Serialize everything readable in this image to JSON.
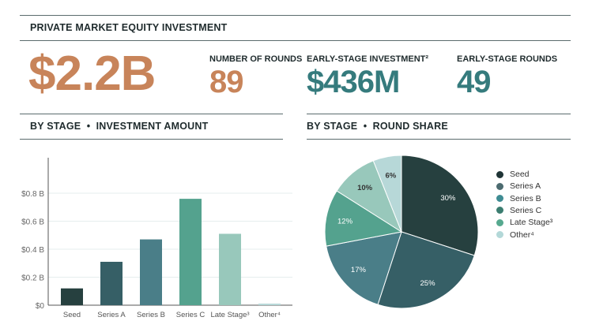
{
  "header": {
    "title": "PRIVATE MARKET EQUITY INVESTMENT"
  },
  "kpis": {
    "total": "$2.2B",
    "rounds_label": "NUMBER OF ROUNDS",
    "rounds_value": "89",
    "early_inv_label": "EARLY-STAGE INVESTMENT²",
    "early_inv_value": "$436M",
    "early_rounds_label": "EARLY-STAGE ROUNDS",
    "early_rounds_value": "49"
  },
  "colors": {
    "orange": "#c8845a",
    "teal": "#357b7d"
  },
  "chart_data": [
    {
      "type": "bar",
      "title": "BY STAGE  •  INVESTMENT AMOUNT",
      "categories": [
        "Seed",
        "Series A",
        "Series B",
        "Series C",
        "Late Stage³",
        "Other⁴"
      ],
      "values": [
        0.12,
        0.31,
        0.47,
        0.76,
        0.51,
        0.01
      ],
      "colors": [
        "#26403f",
        "#365f66",
        "#4a7e88",
        "#54a28e",
        "#98c8bb",
        "#b7d8d8"
      ],
      "yticks": [
        "$0",
        "$0.2 B",
        "$0.4 B",
        "$0.6 B",
        "$0.8 B"
      ],
      "ylim": [
        0,
        1.0
      ],
      "unit": "$B",
      "grid": true
    },
    {
      "type": "pie",
      "title": "BY STAGE  •  ROUND SHARE",
      "categories": [
        "Seed",
        "Series A",
        "Series B",
        "Series C",
        "Late Stage³",
        "Other⁴"
      ],
      "values": [
        30,
        25,
        17,
        12,
        10,
        6
      ],
      "labels": [
        "30%",
        "25%",
        "17%",
        "12%",
        "10%",
        "6%"
      ],
      "colors": [
        "#26403f",
        "#365f66",
        "#4a7e88",
        "#54a28e",
        "#98c8bb",
        "#b7d8d8"
      ],
      "legend_colors": [
        "#1f3436",
        "#4c6b70",
        "#3f8c93",
        "#3b7d70",
        "#56a98f",
        "#b3d8d8"
      ],
      "legend": "right"
    }
  ]
}
